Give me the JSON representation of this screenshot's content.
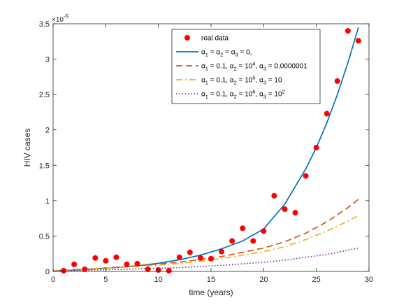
{
  "chart_data": {
    "type": "line",
    "title": "",
    "xlabel": "time (years)",
    "ylabel": "HIV cases",
    "y_exponent_label": "×10",
    "y_exponent_power": "-5",
    "xlim": [
      0,
      30
    ],
    "ylim": [
      0,
      3.5
    ],
    "y_scale_factor": "1e-5",
    "x_ticks": [
      0,
      5,
      10,
      15,
      20,
      25,
      30
    ],
    "x_tick_labels": [
      "0",
      "5",
      "10",
      "15",
      "20",
      "25",
      "30"
    ],
    "y_ticks": [
      0,
      0.5,
      1,
      1.5,
      2,
      2.5,
      3,
      3.5
    ],
    "y_tick_labels": [
      "0",
      "0.5",
      "1",
      "1.5",
      "2",
      "2.5",
      "3",
      "3.5"
    ],
    "grid": false,
    "legend_position": "top-center",
    "scatter": {
      "name": "real data",
      "color": "#ff0000",
      "x": [
        1,
        2,
        3,
        4,
        5,
        6,
        7,
        8,
        9,
        10,
        11,
        12,
        13,
        14,
        15,
        16,
        17,
        18,
        19,
        20,
        21,
        22,
        23,
        24,
        25,
        26,
        27,
        28,
        29
      ],
      "y": [
        0.01,
        0.1,
        0.03,
        0.19,
        0.15,
        0.2,
        0.1,
        0.11,
        0.03,
        0.02,
        0.01,
        0.2,
        0.27,
        0.19,
        0.18,
        0.28,
        0.43,
        0.61,
        0.43,
        0.57,
        1.07,
        0.88,
        0.83,
        1.35,
        1.75,
        2.23,
        2.69,
        3.4,
        3.26
      ]
    },
    "series": [
      {
        "name": "α1 = α2 = α3 = 0,",
        "style": "solid",
        "color": "#0072bd",
        "x": [
          0,
          2,
          4,
          6,
          8,
          10,
          12,
          14,
          16,
          18,
          20,
          22,
          24,
          25,
          26,
          27,
          28,
          29
        ],
        "y": [
          0.01,
          0.02,
          0.035,
          0.055,
          0.08,
          0.115,
          0.165,
          0.23,
          0.32,
          0.43,
          0.6,
          0.95,
          1.45,
          1.75,
          2.1,
          2.5,
          2.95,
          3.45
        ]
      },
      {
        "name": "α1 = 0.1, α2 = 10^4, α3 = 0.0000001",
        "style": "dashed",
        "color": "#d95319",
        "x": [
          0,
          4,
          8,
          12,
          16,
          20,
          22,
          24,
          26,
          28,
          29
        ],
        "y": [
          0.01,
          0.04,
          0.08,
          0.13,
          0.21,
          0.33,
          0.42,
          0.54,
          0.7,
          0.9,
          1.02
        ]
      },
      {
        "name": "α1 = 0.1, α2 = 10^5, α3 = 10",
        "style": "dashdot",
        "color": "#edb120",
        "x": [
          0,
          4,
          8,
          12,
          16,
          20,
          22,
          24,
          26,
          28,
          29
        ],
        "y": [
          0.01,
          0.04,
          0.07,
          0.11,
          0.18,
          0.28,
          0.35,
          0.45,
          0.57,
          0.71,
          0.79
        ]
      },
      {
        "name": "α1 = 0.1, α2 = 10^6, α3 = 10^2",
        "style": "dotted",
        "color": "#7e2f8e",
        "x": [
          0,
          4,
          8,
          12,
          16,
          20,
          22,
          24,
          26,
          28,
          29
        ],
        "y": [
          0.005,
          0.02,
          0.035,
          0.055,
          0.085,
          0.13,
          0.16,
          0.2,
          0.24,
          0.3,
          0.33
        ]
      }
    ],
    "legend": {
      "entries": [
        {
          "kind": "marker",
          "color": "#ff0000",
          "parts": [
            {
              "t": "real data",
              "s": "n"
            }
          ]
        },
        {
          "kind": "solid",
          "color": "#0072bd",
          "parts": [
            {
              "t": "α",
              "s": "n"
            },
            {
              "t": "1",
              "s": "sub"
            },
            {
              "t": " = α",
              "s": "n"
            },
            {
              "t": "2",
              "s": "sub"
            },
            {
              "t": " = α",
              "s": "n"
            },
            {
              "t": "3",
              "s": "sub"
            },
            {
              "t": " = 0,",
              "s": "n"
            }
          ]
        },
        {
          "kind": "dashed",
          "color": "#d95319",
          "parts": [
            {
              "t": "α",
              "s": "n"
            },
            {
              "t": "1",
              "s": "sub"
            },
            {
              "t": " = 0.1, α",
              "s": "n"
            },
            {
              "t": "2",
              "s": "sub"
            },
            {
              "t": " = 10",
              "s": "n"
            },
            {
              "t": "4",
              "s": "sup"
            },
            {
              "t": ", α",
              "s": "n"
            },
            {
              "t": "3",
              "s": "sub"
            },
            {
              "t": " = 0.0000001",
              "s": "n"
            }
          ]
        },
        {
          "kind": "dashdot",
          "color": "#edb120",
          "parts": [
            {
              "t": "α",
              "s": "n"
            },
            {
              "t": "1",
              "s": "sub"
            },
            {
              "t": " = 0.1, α",
              "s": "n"
            },
            {
              "t": "2",
              "s": "sub"
            },
            {
              "t": " = 10",
              "s": "n"
            },
            {
              "t": "5",
              "s": "sup"
            },
            {
              "t": ", α",
              "s": "n"
            },
            {
              "t": "3",
              "s": "sub"
            },
            {
              "t": " = 10",
              "s": "n"
            }
          ]
        },
        {
          "kind": "dotted",
          "color": "#7e2f8e",
          "parts": [
            {
              "t": "α",
              "s": "n"
            },
            {
              "t": "1",
              "s": "sub"
            },
            {
              "t": " = 0.1, α",
              "s": "n"
            },
            {
              "t": "2",
              "s": "sub"
            },
            {
              "t": " = 10",
              "s": "n"
            },
            {
              "t": "6",
              "s": "sup"
            },
            {
              "t": ", α",
              "s": "n"
            },
            {
              "t": "3",
              "s": "sub"
            },
            {
              "t": " = 10",
              "s": "n"
            },
            {
              "t": "2",
              "s": "sup"
            }
          ]
        }
      ]
    }
  }
}
